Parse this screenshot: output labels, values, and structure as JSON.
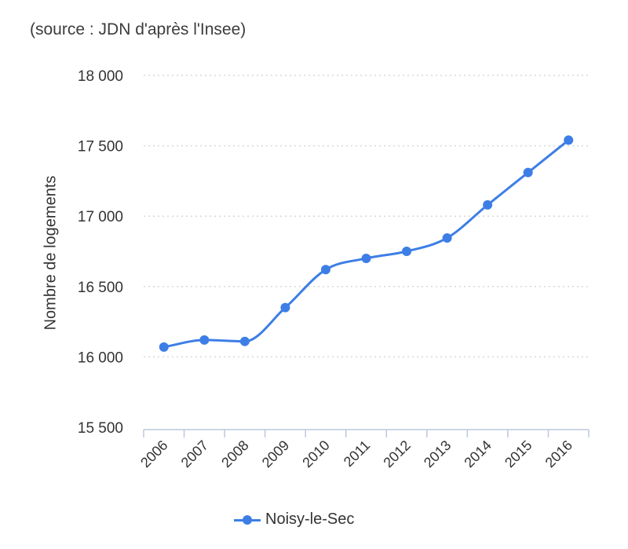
{
  "source_note": "(source : JDN d'après l'Insee)",
  "legend": {
    "label": "Noisy-le-Sec"
  },
  "colors": {
    "series": "#3d7ee6",
    "grid": "#d8d8d8",
    "axis": "#bcc8df",
    "text": "#333333"
  },
  "chart_data": {
    "type": "line",
    "title": "",
    "xlabel": "",
    "ylabel": "Nombre de logements",
    "categories": [
      "2006",
      "2007",
      "2008",
      "2009",
      "2010",
      "2011",
      "2012",
      "2013",
      "2014",
      "2015",
      "2016"
    ],
    "series": [
      {
        "name": "Noisy-le-Sec",
        "values": [
          16070,
          16120,
          16110,
          16350,
          16620,
          16700,
          16750,
          16845,
          17080,
          17310,
          17540
        ]
      }
    ],
    "ylim": [
      15500,
      18000
    ],
    "yticks": [
      15500,
      16000,
      16500,
      17000,
      17500,
      18000
    ],
    "ytick_labels": [
      "15 500",
      "16 000",
      "16 500",
      "17 000",
      "17 500",
      "18 000"
    ],
    "grid": true,
    "legend_position": "bottom-center"
  }
}
